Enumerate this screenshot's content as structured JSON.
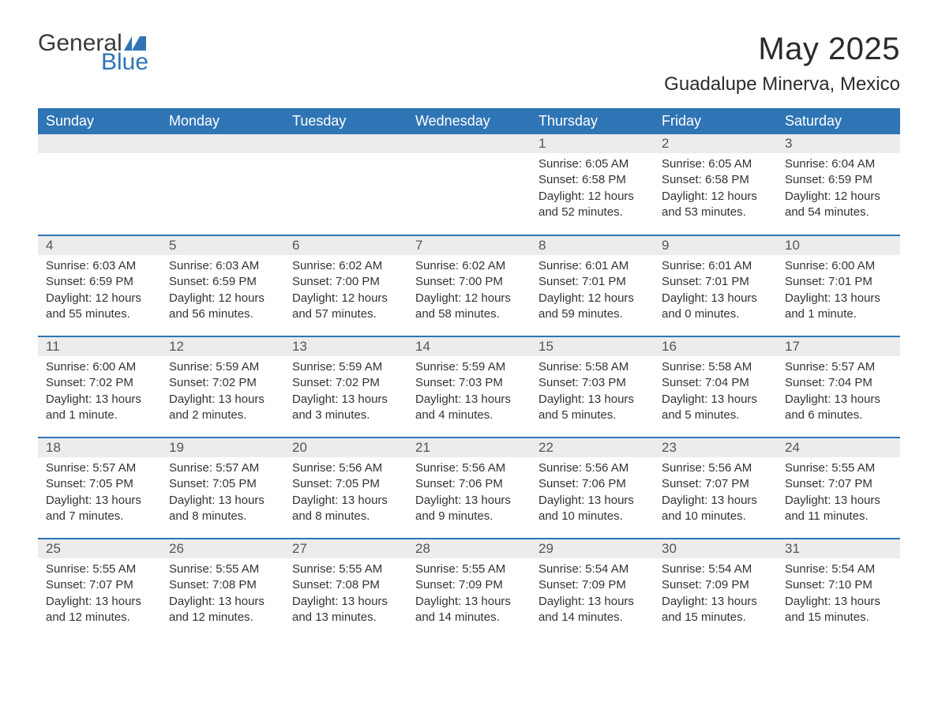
{
  "brand": {
    "word1": "General",
    "word2": "Blue",
    "flag_color": "#2f75b5"
  },
  "title": "May 2025",
  "location": "Guadalupe Minerva, Mexico",
  "colors": {
    "header_bg": "#2f75b5",
    "header_text": "#ffffff",
    "daynum_bg": "#ececec",
    "border": "#2f75b5",
    "body_text": "#333333"
  },
  "weekdays": [
    "Sunday",
    "Monday",
    "Tuesday",
    "Wednesday",
    "Thursday",
    "Friday",
    "Saturday"
  ],
  "weeks": [
    [
      null,
      null,
      null,
      null,
      {
        "n": "1",
        "sunrise": "6:05 AM",
        "sunset": "6:58 PM",
        "daylight": "12 hours and 52 minutes."
      },
      {
        "n": "2",
        "sunrise": "6:05 AM",
        "sunset": "6:58 PM",
        "daylight": "12 hours and 53 minutes."
      },
      {
        "n": "3",
        "sunrise": "6:04 AM",
        "sunset": "6:59 PM",
        "daylight": "12 hours and 54 minutes."
      }
    ],
    [
      {
        "n": "4",
        "sunrise": "6:03 AM",
        "sunset": "6:59 PM",
        "daylight": "12 hours and 55 minutes."
      },
      {
        "n": "5",
        "sunrise": "6:03 AM",
        "sunset": "6:59 PM",
        "daylight": "12 hours and 56 minutes."
      },
      {
        "n": "6",
        "sunrise": "6:02 AM",
        "sunset": "7:00 PM",
        "daylight": "12 hours and 57 minutes."
      },
      {
        "n": "7",
        "sunrise": "6:02 AM",
        "sunset": "7:00 PM",
        "daylight": "12 hours and 58 minutes."
      },
      {
        "n": "8",
        "sunrise": "6:01 AM",
        "sunset": "7:01 PM",
        "daylight": "12 hours and 59 minutes."
      },
      {
        "n": "9",
        "sunrise": "6:01 AM",
        "sunset": "7:01 PM",
        "daylight": "13 hours and 0 minutes."
      },
      {
        "n": "10",
        "sunrise": "6:00 AM",
        "sunset": "7:01 PM",
        "daylight": "13 hours and 1 minute."
      }
    ],
    [
      {
        "n": "11",
        "sunrise": "6:00 AM",
        "sunset": "7:02 PM",
        "daylight": "13 hours and 1 minute."
      },
      {
        "n": "12",
        "sunrise": "5:59 AM",
        "sunset": "7:02 PM",
        "daylight": "13 hours and 2 minutes."
      },
      {
        "n": "13",
        "sunrise": "5:59 AM",
        "sunset": "7:02 PM",
        "daylight": "13 hours and 3 minutes."
      },
      {
        "n": "14",
        "sunrise": "5:59 AM",
        "sunset": "7:03 PM",
        "daylight": "13 hours and 4 minutes."
      },
      {
        "n": "15",
        "sunrise": "5:58 AM",
        "sunset": "7:03 PM",
        "daylight": "13 hours and 5 minutes."
      },
      {
        "n": "16",
        "sunrise": "5:58 AM",
        "sunset": "7:04 PM",
        "daylight": "13 hours and 5 minutes."
      },
      {
        "n": "17",
        "sunrise": "5:57 AM",
        "sunset": "7:04 PM",
        "daylight": "13 hours and 6 minutes."
      }
    ],
    [
      {
        "n": "18",
        "sunrise": "5:57 AM",
        "sunset": "7:05 PM",
        "daylight": "13 hours and 7 minutes."
      },
      {
        "n": "19",
        "sunrise": "5:57 AM",
        "sunset": "7:05 PM",
        "daylight": "13 hours and 8 minutes."
      },
      {
        "n": "20",
        "sunrise": "5:56 AM",
        "sunset": "7:05 PM",
        "daylight": "13 hours and 8 minutes."
      },
      {
        "n": "21",
        "sunrise": "5:56 AM",
        "sunset": "7:06 PM",
        "daylight": "13 hours and 9 minutes."
      },
      {
        "n": "22",
        "sunrise": "5:56 AM",
        "sunset": "7:06 PM",
        "daylight": "13 hours and 10 minutes."
      },
      {
        "n": "23",
        "sunrise": "5:56 AM",
        "sunset": "7:07 PM",
        "daylight": "13 hours and 10 minutes."
      },
      {
        "n": "24",
        "sunrise": "5:55 AM",
        "sunset": "7:07 PM",
        "daylight": "13 hours and 11 minutes."
      }
    ],
    [
      {
        "n": "25",
        "sunrise": "5:55 AM",
        "sunset": "7:07 PM",
        "daylight": "13 hours and 12 minutes."
      },
      {
        "n": "26",
        "sunrise": "5:55 AM",
        "sunset": "7:08 PM",
        "daylight": "13 hours and 12 minutes."
      },
      {
        "n": "27",
        "sunrise": "5:55 AM",
        "sunset": "7:08 PM",
        "daylight": "13 hours and 13 minutes."
      },
      {
        "n": "28",
        "sunrise": "5:55 AM",
        "sunset": "7:09 PM",
        "daylight": "13 hours and 14 minutes."
      },
      {
        "n": "29",
        "sunrise": "5:54 AM",
        "sunset": "7:09 PM",
        "daylight": "13 hours and 14 minutes."
      },
      {
        "n": "30",
        "sunrise": "5:54 AM",
        "sunset": "7:09 PM",
        "daylight": "13 hours and 15 minutes."
      },
      {
        "n": "31",
        "sunrise": "5:54 AM",
        "sunset": "7:10 PM",
        "daylight": "13 hours and 15 minutes."
      }
    ]
  ],
  "labels": {
    "sunrise": "Sunrise: ",
    "sunset": "Sunset: ",
    "daylight": "Daylight: "
  }
}
